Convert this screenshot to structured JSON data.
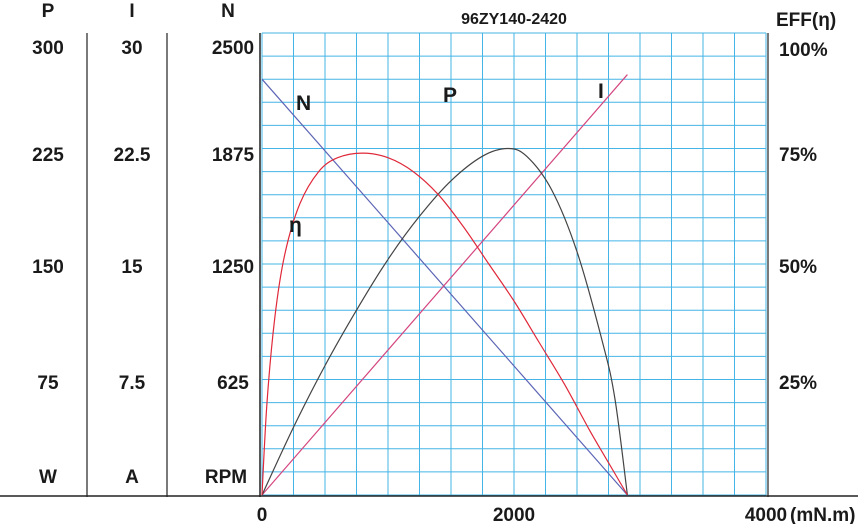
{
  "chart_data": {
    "type": "line",
    "title": "96ZY140-2420",
    "x_axis": {
      "label": "(mN.m)",
      "range": [
        0,
        4000
      ],
      "ticks": [
        0,
        2000,
        4000
      ],
      "tick_labels": [
        "0",
        "2000",
        "4000"
      ]
    },
    "left_axes": [
      {
        "header": "P",
        "unit": "W",
        "range": [
          0,
          300
        ],
        "ticks": [
          "300",
          "225",
          "150",
          "75"
        ]
      },
      {
        "header": "I",
        "unit": "A",
        "range": [
          0,
          30
        ],
        "ticks": [
          "30",
          "22.5",
          "15",
          "7.5"
        ]
      },
      {
        "header": "N",
        "unit": "RPM",
        "range": [
          0,
          2500
        ],
        "ticks": [
          "2500",
          "1875",
          "1250",
          "625"
        ]
      }
    ],
    "right_axis": {
      "header": "EFF(η)",
      "range": [
        0,
        100
      ],
      "ticks": [
        "100%",
        "75%",
        "50%",
        "25%"
      ]
    },
    "grid": true,
    "series": [
      {
        "name": "N",
        "unit_axis": "RPM",
        "color": "#5b64b5",
        "points": [
          [
            0,
            2250
          ],
          [
            2900,
            0
          ]
        ]
      },
      {
        "name": "I",
        "unit_axis": "A",
        "color": "#d4467f",
        "points": [
          [
            0,
            0
          ],
          [
            2900,
            27.3
          ]
        ]
      },
      {
        "name": "P",
        "unit_axis": "W",
        "color": "#444444",
        "points": [
          [
            0,
            0
          ],
          [
            250,
            44
          ],
          [
            500,
            84
          ],
          [
            750,
            120
          ],
          [
            1000,
            153
          ],
          [
            1250,
            181
          ],
          [
            1500,
            204
          ],
          [
            1750,
            220
          ],
          [
            1950,
            225
          ],
          [
            2100,
            220
          ],
          [
            2300,
            198
          ],
          [
            2500,
            158
          ],
          [
            2700,
            100
          ],
          [
            2800,
            63
          ],
          [
            2900,
            0
          ]
        ]
      },
      {
        "name": "η",
        "unit_axis": "%",
        "color": "#e0293a",
        "points": [
          [
            0,
            0
          ],
          [
            40,
            20
          ],
          [
            100,
            38
          ],
          [
            180,
            52
          ],
          [
            300,
            63
          ],
          [
            450,
            70
          ],
          [
            600,
            73
          ],
          [
            800,
            74
          ],
          [
            1000,
            73
          ],
          [
            1200,
            70
          ],
          [
            1400,
            65
          ],
          [
            1600,
            58
          ],
          [
            1800,
            50
          ],
          [
            2000,
            42
          ],
          [
            2200,
            33
          ],
          [
            2400,
            24
          ],
          [
            2600,
            14
          ],
          [
            2750,
            7
          ],
          [
            2900,
            0
          ]
        ]
      }
    ],
    "curve_labels": [
      "N",
      "P",
      "I",
      "η"
    ]
  }
}
